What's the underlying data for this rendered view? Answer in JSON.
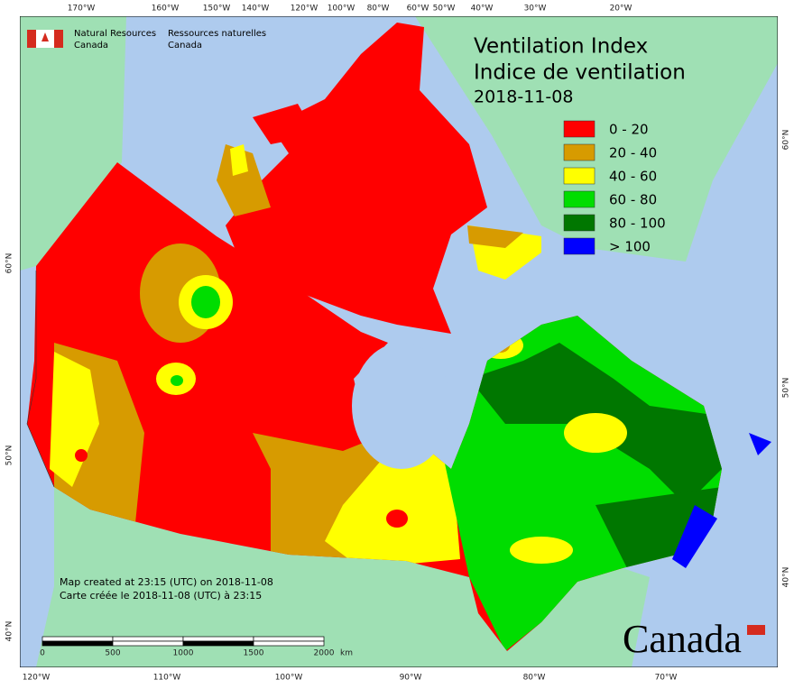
{
  "header": {
    "agency_en": [
      "Natural Resources",
      "Canada"
    ],
    "agency_fr": [
      "Ressources naturelles",
      "Canada"
    ]
  },
  "title": [
    "Ventilation Index",
    "Indice de ventilation",
    "2018-11-08"
  ],
  "legend": [
    {
      "label": "0 - 20",
      "color": "#ff0000"
    },
    {
      "label": "20 - 40",
      "color": "#d79b00"
    },
    {
      "label": "40 - 60",
      "color": "#ffff00"
    },
    {
      "label": "60 - 80",
      "color": "#00dd00"
    },
    {
      "label": "80 - 100",
      "color": "#007700"
    },
    {
      "label": "> 100",
      "color": "#0000ff"
    }
  ],
  "graticule": {
    "top": [
      "170°W",
      "160°W",
      "150°W",
      "140°W",
      "120°W",
      "100°W",
      "80°W",
      "60°W",
      "50°W",
      "40°W",
      "30°W",
      "20°W"
    ],
    "bottom": [
      "120°W",
      "110°W",
      "100°W",
      "90°W",
      "80°W",
      "70°W"
    ],
    "left": [
      "60°N",
      "50°N",
      "40°N"
    ],
    "right": [
      "60°N",
      "50°N",
      "40°N"
    ]
  },
  "notes": [
    "Map created at 23:15 (UTC) on 2018-11-08",
    "Carte créée le 2018-11-08 (UTC) à 23:15"
  ],
  "scale_bar": {
    "labels": [
      "0",
      "500",
      "1000",
      "1500",
      "2000"
    ],
    "unit": "km"
  },
  "wordmark": "Canada"
}
